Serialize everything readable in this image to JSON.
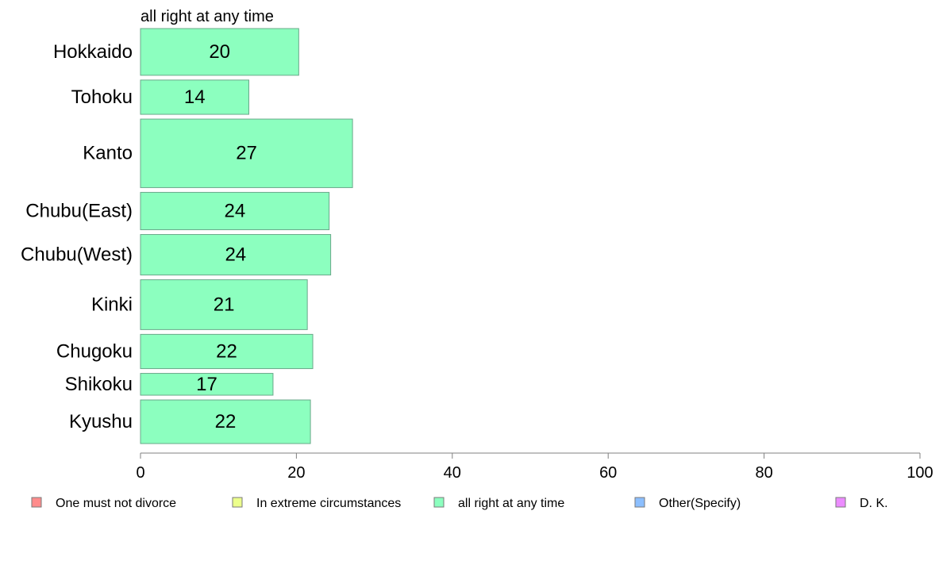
{
  "chart_data": {
    "type": "bar",
    "orientation": "horizontal",
    "subtitle": "all right at any time",
    "categories": [
      "Hokkaido",
      "Tohoku",
      "Kanto",
      "Chubu(East)",
      "Chubu(West)",
      "Kinki",
      "Chugoku",
      "Shikoku",
      "Kyushu"
    ],
    "bar_weights": [
      1.5,
      1.1,
      2.2,
      1.2,
      1.3,
      1.6,
      1.1,
      0.7,
      1.4
    ],
    "values": [
      20.3,
      13.9,
      27.2,
      24.2,
      24.4,
      21.4,
      22.1,
      17.0,
      21.8
    ],
    "value_labels": [
      "20",
      "14",
      "27",
      "24",
      "24",
      "21",
      "22",
      "17",
      "22"
    ],
    "xlim": [
      0,
      100
    ],
    "xticks": [
      0,
      20,
      40,
      60,
      80,
      100
    ],
    "grid": false,
    "bar_color": "#8cffbf",
    "bar_stroke": "#6aa88a",
    "axis_color": "#808080",
    "legend": {
      "placement": "bottom",
      "items": [
        {
          "label": "One must not divorce",
          "color": "#ff8c8c"
        },
        {
          "label": "In extreme circumstances",
          "color": "#ecff8c"
        },
        {
          "label": "all right at any time",
          "color": "#8cffbf"
        },
        {
          "label": "Other(Specify)",
          "color": "#8cbfff"
        },
        {
          "label": "D. K.",
          "color": "#ec8cff"
        }
      ]
    }
  }
}
